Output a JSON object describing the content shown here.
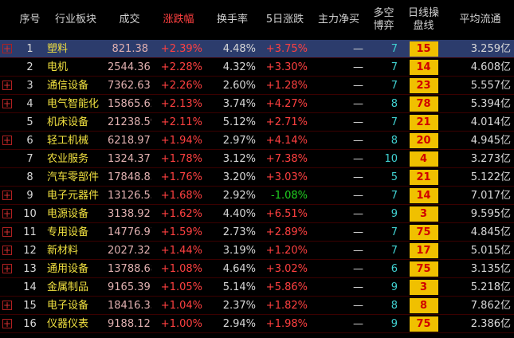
{
  "table": {
    "header": [
      "序号",
      "行业板块",
      "成交",
      "涨跌幅",
      "换手率",
      "5日涨跌",
      "主力净买",
      "多空\n博弈",
      "日线操\n盘线",
      "平均流通"
    ],
    "rows": [
      [
        "1",
        "塑料",
        "821.38",
        "+2.39%",
        "4.48%",
        "+3.75%",
        "—",
        "7",
        "15",
        "3.259亿"
      ],
      [
        "2",
        "电机",
        "2544.36",
        "+2.28%",
        "4.32%",
        "+3.30%",
        "—",
        "7",
        "14",
        "4.608亿"
      ],
      [
        "3",
        "通信设备",
        "7362.63",
        "+2.26%",
        "2.60%",
        "+1.28%",
        "—",
        "7",
        "23",
        "5.557亿"
      ],
      [
        "4",
        "电气智能化",
        "15865.62",
        "+2.13%",
        "3.74%",
        "+4.27%",
        "—",
        "8",
        "78",
        "5.394亿"
      ],
      [
        "5",
        "机床设备",
        "21238.59",
        "+2.11%",
        "5.12%",
        "+2.71%",
        "—",
        "7",
        "21",
        "4.014亿"
      ],
      [
        "6",
        "轻工机械",
        "6218.97",
        "+1.94%",
        "2.97%",
        "+4.14%",
        "—",
        "8",
        "20",
        "4.945亿"
      ],
      [
        "7",
        "农业服务",
        "1324.37",
        "+1.78%",
        "3.12%",
        "+7.38%",
        "—",
        "10",
        "4",
        "3.273亿"
      ],
      [
        "8",
        "汽车零部件",
        "17848.83",
        "+1.76%",
        "3.20%",
        "+3.03%",
        "—",
        "5",
        "21",
        "5.122亿"
      ],
      [
        "9",
        "电子元器件",
        "13126.55",
        "+1.68%",
        "2.92%",
        "-1.08%",
        "—",
        "7",
        "14",
        "7.017亿"
      ],
      [
        "10",
        "电源设备",
        "3138.92",
        "+1.62%",
        "4.40%",
        "+6.51%",
        "—",
        "9",
        "3",
        "9.595亿"
      ],
      [
        "11",
        "专用设备",
        "14776.97",
        "+1.59%",
        "2.73%",
        "+2.89%",
        "—",
        "7",
        "75",
        "4.845亿"
      ],
      [
        "12",
        "新材料",
        "2027.32",
        "+1.44%",
        "3.19%",
        "+1.20%",
        "—",
        "7",
        "17",
        "5.015亿"
      ],
      [
        "13",
        "通用设备",
        "13788.68",
        "+1.08%",
        "4.64%",
        "+3.02%",
        "—",
        "6",
        "75",
        "3.135亿"
      ],
      [
        "14",
        "金属制品",
        "9165.39",
        "+1.05%",
        "5.14%",
        "+5.86%",
        "—",
        "9",
        "3",
        "5.218亿"
      ],
      [
        "15",
        "电子设备",
        "18416.33",
        "+1.04%",
        "2.37%",
        "+1.82%",
        "—",
        "8",
        "8",
        "7.862亿"
      ],
      [
        "16",
        "仪器仪表",
        "9188.12",
        "+1.00%",
        "2.94%",
        "+1.98%",
        "—",
        "9",
        "75",
        "2.386亿"
      ]
    ]
  }
}
